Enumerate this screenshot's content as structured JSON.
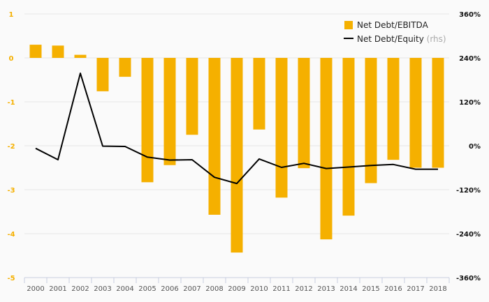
{
  "chart_data": {
    "type": "bar",
    "categories": [
      "2000",
      "2001",
      "2002",
      "2003",
      "2004",
      "2005",
      "2006",
      "2007",
      "2008",
      "2009",
      "2010",
      "2011",
      "2012",
      "2013",
      "2014",
      "2015",
      "2016",
      "2017",
      "2018"
    ],
    "series": [
      {
        "name": "Net Debt/EBITDA",
        "type": "bar",
        "axis": "left",
        "color": "#f5b000",
        "values": [
          0.3,
          0.28,
          0.07,
          -0.76,
          -0.43,
          -2.83,
          -2.44,
          -1.75,
          -3.57,
          -4.43,
          -1.63,
          -3.18,
          -2.51,
          -4.13,
          -3.59,
          -2.85,
          -2.32,
          -2.5,
          -2.5
        ]
      },
      {
        "name": "Net Debt/Equity",
        "note": "(rhs)",
        "type": "line",
        "axis": "right",
        "color": "#000000",
        "values": [
          -7,
          -38,
          198,
          -1,
          -2,
          -31,
          -39,
          -38,
          -86,
          -103,
          -36,
          -59,
          -48,
          -62,
          -58,
          -54,
          -51,
          -64,
          -64
        ]
      }
    ],
    "y_left": {
      "ticks": [
        1,
        0,
        -1,
        -2,
        -3,
        -4,
        -5
      ],
      "range": [
        -5,
        1
      ],
      "tick_color": "#f5b000"
    },
    "y_right": {
      "ticks": [
        "360%",
        "240%",
        "120%",
        "0%",
        "-120%",
        "-240%",
        "-360%"
      ],
      "range": [
        -360,
        360
      ]
    },
    "grid": true,
    "legend": "top-right"
  }
}
